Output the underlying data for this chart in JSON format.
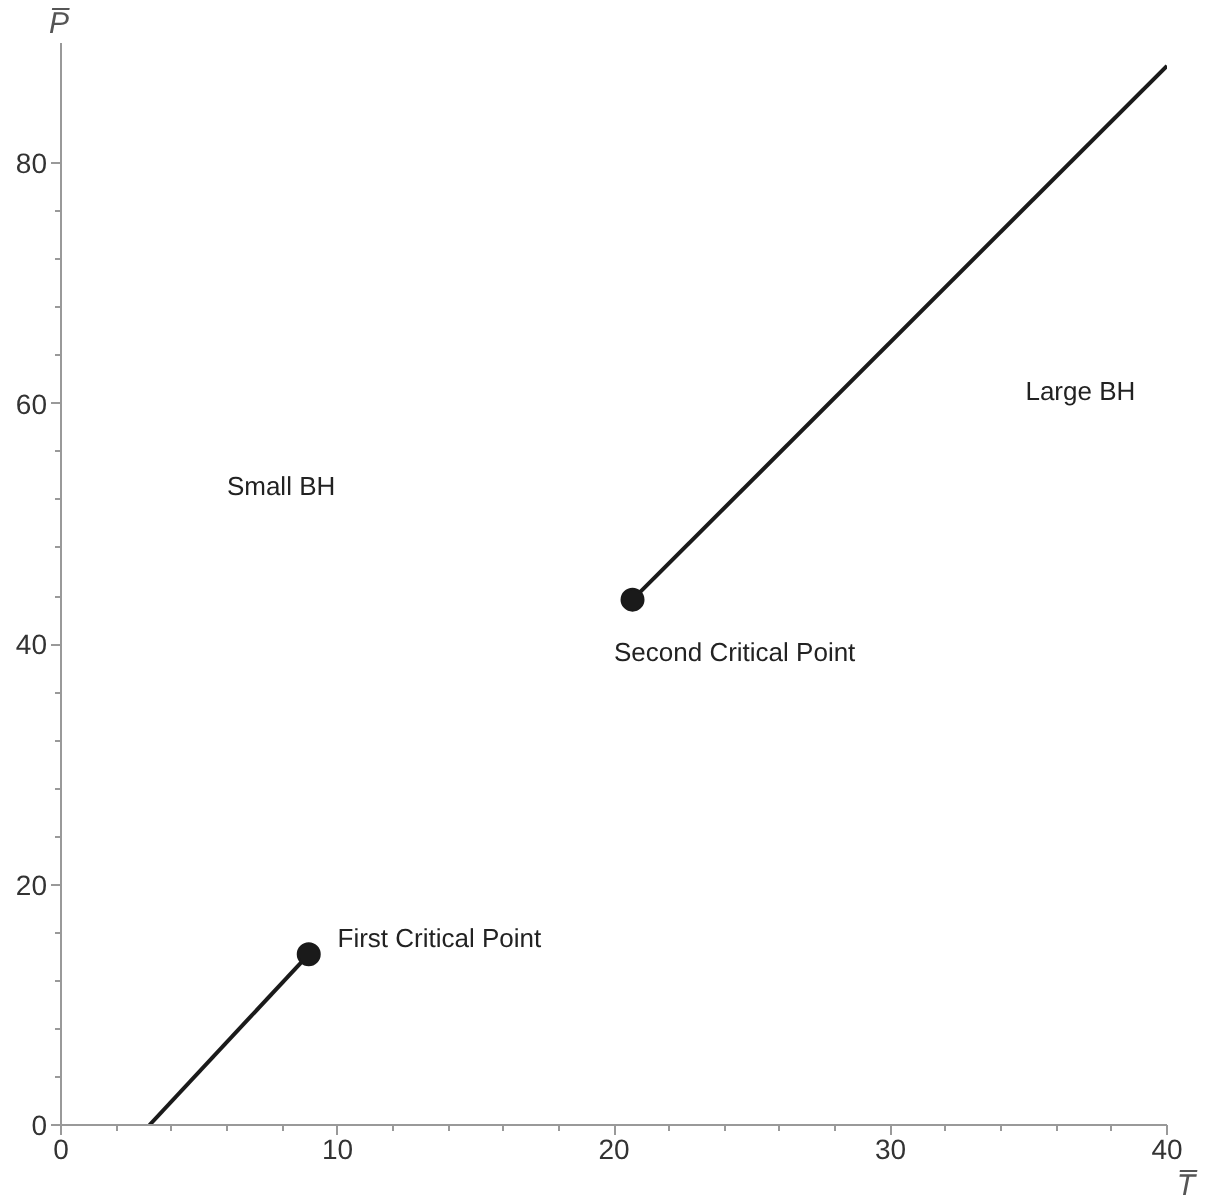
{
  "chart_data": {
    "type": "line",
    "xlabel": "T̅",
    "ylabel": "P̅",
    "series": [
      {
        "color": "#1a1a1a",
        "x": [
          3.2,
          8.96
        ],
        "values": [
          0,
          14.2
        ]
      },
      {
        "color": "#1a1a1a",
        "x": [
          20.67,
          40.0
        ],
        "values": [
          43.7,
          88.1
        ]
      },
      {
        "type": "scatter",
        "color": "#1a1a1a",
        "x": [
          8.96,
          20.67
        ],
        "values": [
          14.2,
          43.7
        ]
      }
    ],
    "annotations": [
      "Small BH",
      "Large BH",
      "First Critical Point",
      "Second Critical Point"
    ],
    "xlim": [
      0,
      40
    ],
    "ylim": [
      0,
      90
    ],
    "xticks": [
      0,
      10,
      20,
      30,
      40
    ],
    "yticks": [
      0,
      20,
      40,
      60,
      80
    ],
    "grid": false
  }
}
